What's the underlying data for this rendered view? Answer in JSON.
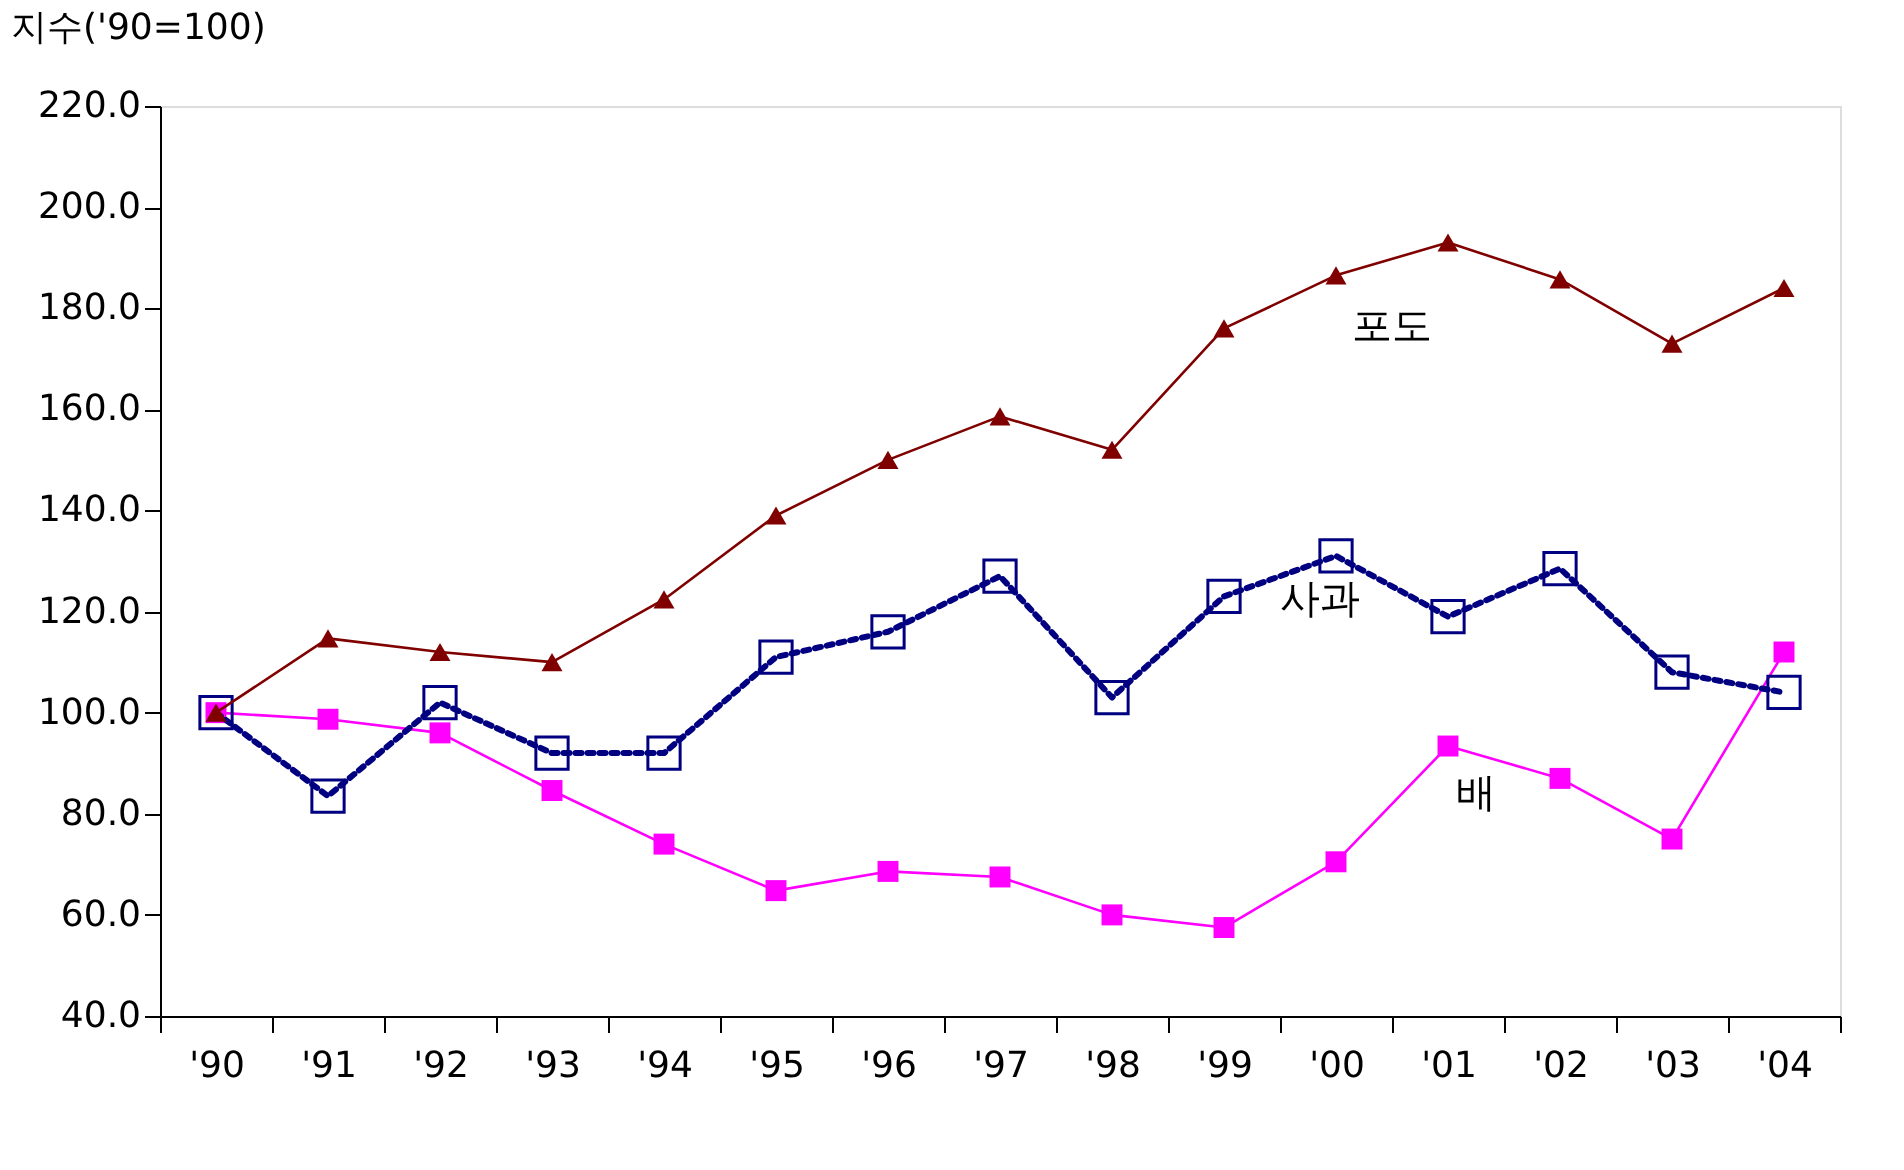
{
  "chart_data": {
    "type": "line",
    "ylabel": "지수('90=100)",
    "categories": [
      "'90",
      "'91",
      "'92",
      "'93",
      "'94",
      "'95",
      "'96",
      "'97",
      "'98",
      "'99",
      "'00",
      "'01",
      "'02",
      "'03",
      "'04"
    ],
    "series": [
      {
        "name": "포도",
        "color": "#800000",
        "marker": "triangle",
        "line_style": "solid",
        "values": [
          100,
          114.7,
          112,
          110,
          122.4,
          139,
          150,
          158.6,
          152,
          176,
          186.5,
          193,
          185.7,
          173,
          184
        ]
      },
      {
        "name": "사과",
        "color": "#000080",
        "marker": "square",
        "line_style": "dotted",
        "values": [
          100,
          83.5,
          102,
          92,
          92,
          111,
          116,
          127,
          103,
          123,
          131,
          119,
          128.5,
          108,
          104
        ]
      },
      {
        "name": "배",
        "color": "#ff00ff",
        "marker": "square",
        "line_style": "solid",
        "values": [
          100,
          98.7,
          96,
          84.6,
          74,
          64.8,
          68.6,
          67.5,
          60,
          57.5,
          70.5,
          93.4,
          87,
          75,
          112
        ]
      }
    ],
    "ylim": [
      40,
      220
    ],
    "yticks": [
      {
        "value": 40,
        "label": "40.0"
      },
      {
        "value": 60,
        "label": "60.0"
      },
      {
        "value": 80,
        "label": "80.0"
      },
      {
        "value": 100,
        "label": "100.0"
      },
      {
        "value": 120,
        "label": "120.0"
      },
      {
        "value": 140,
        "label": "140.0"
      },
      {
        "value": 160,
        "label": "160.0"
      },
      {
        "value": 180,
        "label": "180.0"
      },
      {
        "value": 200,
        "label": "200.0"
      },
      {
        "value": 220,
        "label": "220.0"
      }
    ],
    "grid": false
  }
}
